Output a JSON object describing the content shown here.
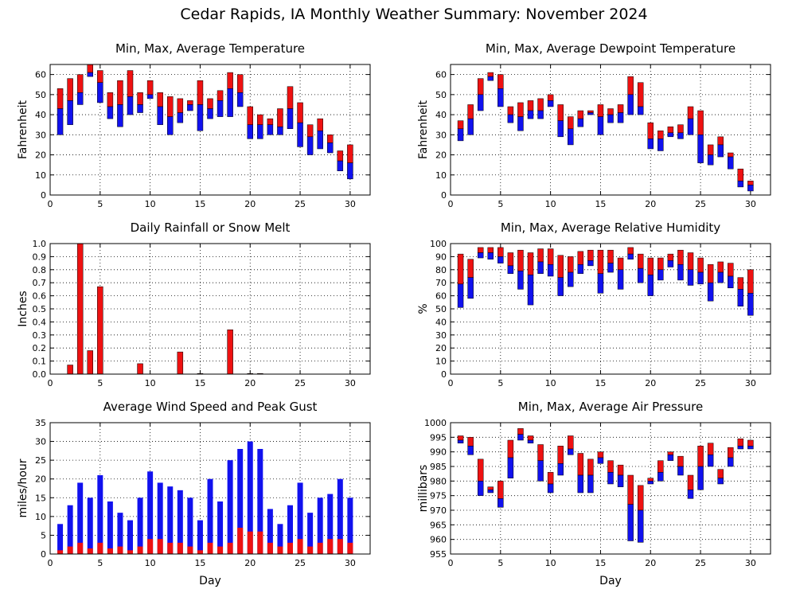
{
  "page": {
    "title": "Cedar Rapids, IA Monthly Weather Summary: November 2024"
  },
  "colors": {
    "red": "#ee1111",
    "blue": "#1111ee"
  },
  "chart_data": [
    {
      "id": "temp",
      "type": "bar",
      "style": "range",
      "title": "Min, Max, Average Temperature",
      "ylabel": "Fahrenheit",
      "xlabel": "",
      "xlim": [
        0,
        32
      ],
      "ylim": [
        0,
        65
      ],
      "xticks": [
        0,
        5,
        10,
        15,
        20,
        25,
        30
      ],
      "yticks": [
        0,
        10,
        20,
        30,
        40,
        50,
        60
      ],
      "grid": true,
      "x": [
        1,
        2,
        3,
        4,
        5,
        6,
        7,
        8,
        9,
        10,
        11,
        12,
        13,
        14,
        15,
        16,
        17,
        18,
        19,
        20,
        21,
        22,
        23,
        24,
        25,
        26,
        27,
        28,
        29,
        30
      ],
      "min": [
        30,
        35,
        45,
        59,
        46,
        38,
        34,
        40,
        41,
        48,
        35,
        30,
        36,
        42,
        32,
        38,
        39,
        39,
        44,
        28,
        28,
        30,
        30,
        33,
        24,
        20,
        23,
        21,
        12,
        8
      ],
      "avg": [
        43,
        47,
        51,
        61,
        56,
        44,
        45,
        49,
        45,
        50,
        44,
        39,
        41,
        45,
        45,
        43,
        47,
        53,
        51,
        35,
        35,
        35,
        34,
        43,
        36,
        29,
        32,
        26,
        17,
        16
      ],
      "max": [
        53,
        58,
        60,
        65,
        62,
        51,
        57,
        62,
        51,
        57,
        51,
        49,
        48,
        47,
        57,
        48,
        52,
        61,
        60,
        44,
        40,
        38,
        43,
        54,
        46,
        35,
        38,
        30,
        22,
        25
      ]
    },
    {
      "id": "dew",
      "type": "bar",
      "style": "range",
      "title": "Min, Max, Average Dewpoint Temperature",
      "ylabel": "Fahrenheit",
      "xlabel": "",
      "xlim": [
        0,
        32
      ],
      "ylim": [
        0,
        65
      ],
      "xticks": [
        0,
        5,
        10,
        15,
        20,
        25,
        30
      ],
      "yticks": [
        0,
        10,
        20,
        30,
        40,
        50,
        60
      ],
      "grid": true,
      "x": [
        1,
        2,
        3,
        4,
        5,
        6,
        7,
        8,
        9,
        10,
        11,
        12,
        13,
        14,
        15,
        16,
        17,
        18,
        19,
        20,
        21,
        22,
        23,
        24,
        25,
        26,
        27,
        28,
        29,
        30
      ],
      "min": [
        27,
        30,
        42,
        57,
        44,
        36,
        32,
        38,
        38,
        44,
        29,
        25,
        34,
        40,
        30,
        36,
        36,
        40,
        40,
        23,
        22,
        29,
        28,
        30,
        16,
        15,
        19,
        13,
        4,
        2
      ],
      "avg": [
        33,
        38,
        50,
        59,
        53,
        40,
        39,
        42,
        42,
        47,
        37,
        33,
        38,
        41,
        39,
        40,
        41,
        50,
        44,
        28,
        28,
        31,
        31,
        38,
        30,
        20,
        25,
        19,
        7,
        5
      ],
      "max": [
        37,
        45,
        58,
        61,
        60,
        44,
        46,
        47,
        48,
        50,
        45,
        39,
        42,
        42,
        45,
        43,
        45,
        59,
        56,
        36,
        32,
        34,
        35,
        44,
        42,
        25,
        29,
        21,
        13,
        7
      ]
    },
    {
      "id": "precip",
      "type": "bar",
      "title": "Daily Rainfall or Snow Melt",
      "ylabel": "Inches",
      "xlabel": "",
      "xlim": [
        0,
        32
      ],
      "ylim": [
        0,
        1.0
      ],
      "xticks": [
        0,
        5,
        10,
        15,
        20,
        25,
        30
      ],
      "yticks": [
        0,
        0.1,
        0.2,
        0.3,
        0.4,
        0.5,
        0.6,
        0.7,
        0.8,
        0.9,
        1.0
      ],
      "ytick_labels": [
        "0.0",
        "0.1",
        "0.2",
        "0.3",
        "0.4",
        "0.5",
        "0.6",
        "0.7",
        "0.8",
        "0.9",
        "1.0"
      ],
      "grid": true,
      "x": [
        1,
        2,
        3,
        4,
        5,
        6,
        7,
        8,
        9,
        10,
        11,
        12,
        13,
        14,
        15,
        16,
        17,
        18,
        19,
        20,
        21,
        22,
        23,
        24,
        25,
        26,
        27,
        28,
        29,
        30
      ],
      "values": [
        0,
        0.07,
        1.0,
        0.18,
        0.67,
        0,
        0,
        0,
        0.08,
        0,
        0,
        0,
        0.17,
        0,
        0.005,
        0,
        0,
        0.34,
        0,
        0.005,
        0.005,
        0,
        0,
        0,
        0,
        0,
        0,
        0,
        0,
        0
      ]
    },
    {
      "id": "rh",
      "type": "bar",
      "style": "range",
      "title": "Min, Max, Average Relative Humidity",
      "ylabel": "%",
      "xlabel": "",
      "xlim": [
        0,
        32
      ],
      "ylim": [
        0,
        100
      ],
      "xticks": [
        0,
        5,
        10,
        15,
        20,
        25,
        30
      ],
      "yticks": [
        0,
        10,
        20,
        30,
        40,
        50,
        60,
        70,
        80,
        90,
        100
      ],
      "grid": true,
      "x": [
        1,
        2,
        3,
        4,
        5,
        6,
        7,
        8,
        9,
        10,
        11,
        12,
        13,
        14,
        15,
        16,
        17,
        18,
        19,
        20,
        21,
        22,
        23,
        24,
        25,
        26,
        27,
        28,
        29,
        30
      ],
      "min": [
        51,
        58,
        89,
        88,
        85,
        77,
        65,
        53,
        77,
        75,
        60,
        67,
        77,
        83,
        62,
        78,
        65,
        88,
        70,
        60,
        72,
        82,
        72,
        68,
        69,
        56,
        70,
        66,
        52,
        45
      ],
      "avg": [
        69,
        74,
        93,
        93,
        90,
        83,
        79,
        76,
        86,
        84,
        74,
        78,
        84,
        87,
        77,
        85,
        80,
        92,
        81,
        76,
        80,
        87,
        84,
        80,
        78,
        70,
        78,
        75,
        65,
        62
      ],
      "max": [
        92,
        88,
        97,
        97,
        97,
        93,
        95,
        93,
        96,
        96,
        91,
        90,
        94,
        95,
        95,
        95,
        89,
        97,
        92,
        89,
        89,
        92,
        95,
        93,
        89,
        84,
        86,
        85,
        74,
        80
      ]
    },
    {
      "id": "wind",
      "type": "bar",
      "style": "overlay",
      "title": "Average Wind Speed and Peak Gust",
      "ylabel": "miles/hour",
      "xlabel": "Day",
      "xlim": [
        0,
        32
      ],
      "ylim": [
        0,
        35
      ],
      "xticks": [
        0,
        5,
        10,
        15,
        20,
        25,
        30
      ],
      "yticks": [
        0,
        5,
        10,
        15,
        20,
        25,
        30,
        35
      ],
      "grid": true,
      "x": [
        1,
        2,
        3,
        4,
        5,
        6,
        7,
        8,
        9,
        10,
        11,
        12,
        13,
        14,
        15,
        16,
        17,
        18,
        19,
        20,
        21,
        22,
        23,
        24,
        25,
        26,
        27,
        28,
        29,
        30
      ],
      "gust": [
        8,
        13,
        19,
        15,
        21,
        14,
        11,
        9,
        15,
        22,
        19,
        18,
        17,
        15,
        9,
        20,
        14,
        25,
        28,
        30,
        28,
        12,
        8,
        13,
        19,
        11,
        15,
        16,
        20,
        15
      ],
      "avg": [
        1,
        2,
        3,
        1.5,
        3,
        1.5,
        2,
        1,
        2,
        4,
        4,
        3,
        3,
        2,
        1,
        3,
        2,
        3,
        7,
        6,
        6,
        3,
        2,
        3,
        4,
        2,
        3,
        4,
        4,
        3
      ]
    },
    {
      "id": "pres",
      "type": "bar",
      "style": "range",
      "title": "Min, Max, Average Air Pressure",
      "ylabel": "millibars",
      "xlabel": "Day",
      "xlim": [
        0,
        32
      ],
      "ylim": [
        955,
        1000
      ],
      "xticks": [
        0,
        5,
        10,
        15,
        20,
        25,
        30
      ],
      "yticks": [
        955,
        960,
        965,
        970,
        975,
        980,
        985,
        990,
        995,
        1000
      ],
      "grid": true,
      "x": [
        1,
        2,
        3,
        4,
        5,
        6,
        7,
        8,
        9,
        10,
        11,
        12,
        13,
        14,
        15,
        16,
        17,
        18,
        19,
        20,
        21,
        22,
        23,
        24,
        25,
        26,
        27,
        28,
        29,
        30
      ],
      "min": [
        993,
        989,
        975,
        976,
        971,
        981,
        994,
        993,
        980,
        976,
        982,
        989,
        976,
        976,
        986,
        979,
        978,
        959.5,
        959,
        979,
        980,
        987,
        982,
        974,
        977,
        985,
        979,
        985,
        991,
        991
      ],
      "avg": [
        994,
        992,
        980,
        977,
        974,
        988,
        996,
        994,
        987,
        979,
        986,
        991,
        982,
        982,
        988,
        983,
        982,
        972,
        970,
        980,
        983,
        989,
        985,
        977,
        985,
        989,
        981,
        988,
        992,
        992
      ],
      "max": [
        995.5,
        995,
        987.5,
        978,
        980,
        994,
        998,
        995.5,
        992.5,
        983,
        992,
        995.5,
        989.5,
        987.5,
        990,
        987,
        985.5,
        982,
        978.5,
        981,
        987,
        990,
        988.5,
        982,
        992,
        993,
        984,
        991.5,
        994.5,
        994
      ]
    }
  ]
}
